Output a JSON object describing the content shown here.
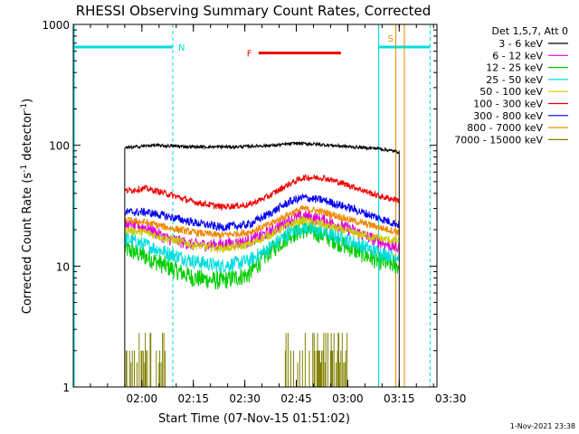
{
  "chart_data": {
    "type": "line",
    "title": "RHESSI Observing Summary Count Rates, Corrected",
    "xlabel": "Start Time (07-Nov-15 01:51:02)",
    "ylabel": "Corrected Count Rate (s⁻¹ detector⁻¹)",
    "ylabel_main": "Corrected Count Rate (s",
    "ylabel_sup1": "-1",
    "ylabel_mid": " detector",
    "ylabel_sup2": "-1",
    "ylabel_end": ")",
    "yscale": "log",
    "ylim": [
      1,
      1000
    ],
    "xlim_minutes": [
      -11,
      95
    ],
    "x_ticks": [
      {
        "m": 9,
        "label": "02:00"
      },
      {
        "m": 24,
        "label": "02:15"
      },
      {
        "m": 39,
        "label": "02:30"
      },
      {
        "m": 54,
        "label": "02:45"
      },
      {
        "m": 69,
        "label": "03:00"
      },
      {
        "m": 84,
        "label": "03:15"
      },
      {
        "m": 99,
        "label": "03:30"
      }
    ],
    "y_ticks": [
      {
        "v": 1,
        "label": "1"
      },
      {
        "v": 10,
        "label": "10"
      },
      {
        "v": 100,
        "label": "100"
      },
      {
        "v": 1000,
        "label": "1000"
      }
    ],
    "legend_title": "Det 1,5,7, Att 0",
    "data_start_min": 4,
    "data_end_min": 84,
    "series": [
      {
        "name": "3 - 6 keV",
        "color": "#000000",
        "points": [
          [
            4,
            95
          ],
          [
            12,
            100
          ],
          [
            24,
            97
          ],
          [
            36,
            97
          ],
          [
            48,
            100
          ],
          [
            54,
            104
          ],
          [
            60,
            102
          ],
          [
            70,
            97
          ],
          [
            78,
            94
          ],
          [
            84,
            88
          ]
        ]
      },
      {
        "name": "6 - 12 keV",
        "color": "#dd00dd",
        "points": [
          [
            4,
            22
          ],
          [
            10,
            21
          ],
          [
            16,
            17
          ],
          [
            24,
            15
          ],
          [
            32,
            15
          ],
          [
            40,
            16
          ],
          [
            46,
            19
          ],
          [
            52,
            24
          ],
          [
            56,
            26
          ],
          [
            62,
            24
          ],
          [
            70,
            20
          ],
          [
            78,
            16
          ],
          [
            84,
            14
          ]
        ]
      },
      {
        "name": "12 - 25 keV",
        "color": "#00cc00",
        "points": [
          [
            4,
            14
          ],
          [
            10,
            12
          ],
          [
            16,
            10
          ],
          [
            24,
            8
          ],
          [
            32,
            7.5
          ],
          [
            40,
            8.5
          ],
          [
            46,
            13
          ],
          [
            52,
            18
          ],
          [
            56,
            20
          ],
          [
            62,
            18
          ],
          [
            70,
            14
          ],
          [
            78,
            11
          ],
          [
            84,
            10
          ]
        ]
      },
      {
        "name": "25 - 50 keV",
        "color": "#00dddd",
        "points": [
          [
            4,
            17
          ],
          [
            10,
            15
          ],
          [
            16,
            13
          ],
          [
            24,
            11
          ],
          [
            32,
            10
          ],
          [
            40,
            11
          ],
          [
            46,
            14
          ],
          [
            52,
            19
          ],
          [
            56,
            21
          ],
          [
            62,
            19
          ],
          [
            70,
            16
          ],
          [
            78,
            13
          ],
          [
            84,
            12
          ]
        ]
      },
      {
        "name": "50 - 100 keV",
        "color": "#cccc00",
        "points": [
          [
            4,
            20
          ],
          [
            10,
            19
          ],
          [
            16,
            17
          ],
          [
            24,
            15
          ],
          [
            32,
            14
          ],
          [
            40,
            15
          ],
          [
            46,
            18
          ],
          [
            52,
            22
          ],
          [
            56,
            24
          ],
          [
            62,
            22
          ],
          [
            70,
            19
          ],
          [
            78,
            17
          ],
          [
            84,
            16
          ]
        ]
      },
      {
        "name": "100 - 300 keV",
        "color": "#ee0000",
        "points": [
          [
            4,
            42
          ],
          [
            10,
            44
          ],
          [
            16,
            40
          ],
          [
            24,
            34
          ],
          [
            32,
            31
          ],
          [
            40,
            32
          ],
          [
            46,
            38
          ],
          [
            52,
            48
          ],
          [
            56,
            54
          ],
          [
            62,
            54
          ],
          [
            70,
            46
          ],
          [
            78,
            38
          ],
          [
            84,
            35
          ]
        ]
      },
      {
        "name": "300 - 800 keV",
        "color": "#0000ee",
        "points": [
          [
            4,
            28
          ],
          [
            10,
            28
          ],
          [
            16,
            26
          ],
          [
            24,
            23
          ],
          [
            32,
            21
          ],
          [
            40,
            22
          ],
          [
            46,
            27
          ],
          [
            52,
            34
          ],
          [
            56,
            37
          ],
          [
            62,
            35
          ],
          [
            70,
            30
          ],
          [
            78,
            25
          ],
          [
            84,
            22
          ]
        ]
      },
      {
        "name": "800 - 7000 keV",
        "color": "#ee8800",
        "points": [
          [
            4,
            24
          ],
          [
            10,
            23
          ],
          [
            16,
            21
          ],
          [
            24,
            19
          ],
          [
            32,
            18
          ],
          [
            40,
            19
          ],
          [
            46,
            22
          ],
          [
            52,
            27
          ],
          [
            56,
            30
          ],
          [
            62,
            28
          ],
          [
            70,
            24
          ],
          [
            78,
            21
          ],
          [
            84,
            19
          ]
        ]
      },
      {
        "name": "7000 - 15000 keV",
        "color": "#808000",
        "points": []
      }
    ],
    "annotations": {
      "night_label": "N",
      "saa_label": "S",
      "flare_label": "F",
      "flare_bar_min": [
        43,
        67
      ],
      "night_span_min": [
        -11,
        18
      ],
      "saa_span_min": [
        78,
        93
      ],
      "night_bar_value": 650,
      "flare_bar_value": 580,
      "cyan_color": "#00dddd",
      "flare_color": "#ee0000",
      "saa_color": "#ee8800",
      "orange_line_min": 83,
      "orange_line2_min": 85.5
    },
    "timestamp": "1-Nov-2021 23:38"
  }
}
